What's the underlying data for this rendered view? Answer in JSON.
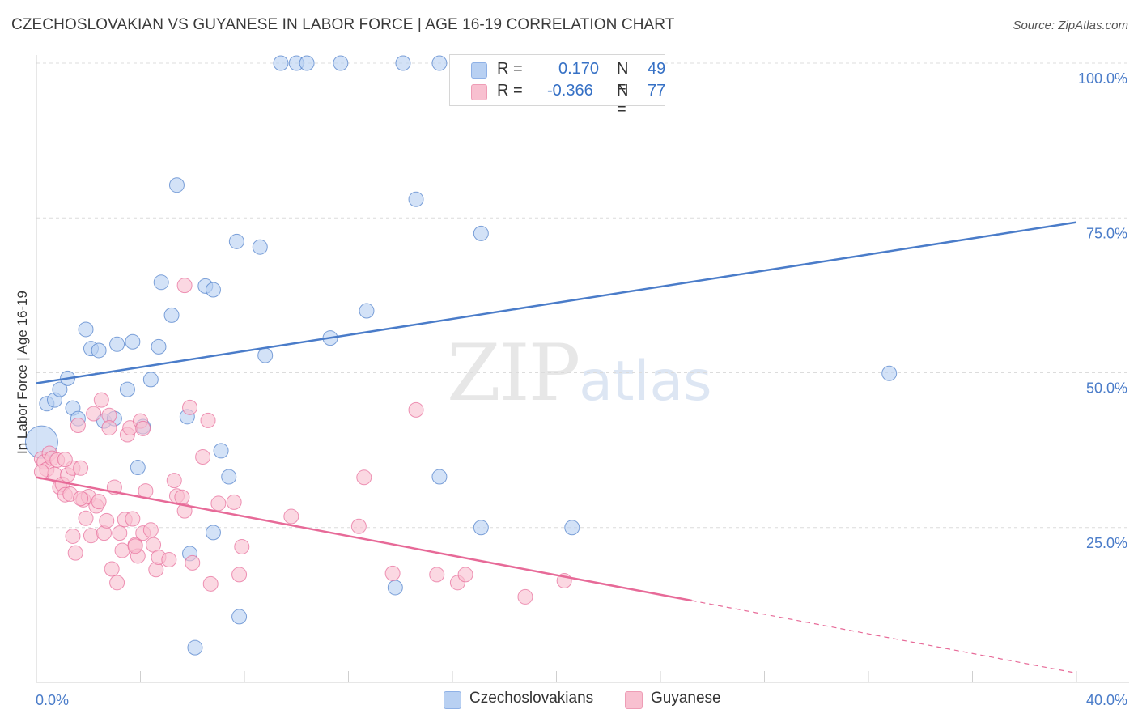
{
  "header": {
    "title": "CZECHOSLOVAKIAN VS GUYANESE IN LABOR FORCE | AGE 16-19 CORRELATION CHART",
    "source": "Source: ZipAtlas.com"
  },
  "watermark": {
    "zip": "ZIP",
    "atlas": "atlas"
  },
  "legend": {
    "rows": [
      {
        "r_label": "R =",
        "r_value": "0.170",
        "n_label": "N =",
        "n_value": "49",
        "color": "#b8d0f2"
      },
      {
        "r_label": "R =",
        "r_value": "-0.366",
        "n_label": "N =",
        "n_value": "77",
        "color": "#f8c0d0"
      }
    ]
  },
  "bottom_legend": {
    "items": [
      {
        "label": "Czechoslovakians",
        "color": "#b8d0f2"
      },
      {
        "label": "Guyanese",
        "color": "#f8c0d0"
      }
    ]
  },
  "chart_data": {
    "type": "scatter",
    "title": "CZECHOSLOVAKIAN VS GUYANESE IN LABOR FORCE | AGE 16-19 CORRELATION CHART",
    "xlabel": "",
    "ylabel": "In Labor Force | Age 16-19",
    "xlim": [
      0,
      40
    ],
    "ylim": [
      0,
      100
    ],
    "x_tick_labels": [
      "0.0%",
      "40.0%"
    ],
    "y_ticks": [
      25,
      50,
      75,
      100
    ],
    "y_tick_labels": [
      "25.0%",
      "50.0%",
      "75.0%",
      "100.0%"
    ],
    "grid": true,
    "legend_position": "top-center",
    "series": [
      {
        "name": "Czechoslovakians",
        "color": "#4a7cc9",
        "fill": "#b8d0f2",
        "trend": {
          "x": [
            0,
            40
          ],
          "y": [
            48.3,
            74.3
          ]
        },
        "points": [
          [
            0.2,
            38.8,
            "big"
          ],
          [
            0.4,
            45.0
          ],
          [
            0.7,
            45.6
          ],
          [
            0.9,
            47.3
          ],
          [
            1.2,
            49.1
          ],
          [
            1.4,
            44.3
          ],
          [
            1.6,
            42.6
          ],
          [
            1.9,
            57.0
          ],
          [
            2.1,
            53.9
          ],
          [
            2.4,
            53.6
          ],
          [
            2.6,
            42.2
          ],
          [
            3.0,
            42.6
          ],
          [
            3.1,
            54.6
          ],
          [
            3.5,
            47.3
          ],
          [
            3.7,
            55.0
          ],
          [
            3.9,
            34.7
          ],
          [
            4.1,
            41.3
          ],
          [
            4.4,
            48.9
          ],
          [
            4.7,
            54.2
          ],
          [
            4.8,
            64.6
          ],
          [
            5.2,
            59.3
          ],
          [
            5.4,
            80.3
          ],
          [
            5.8,
            42.9
          ],
          [
            5.9,
            20.8
          ],
          [
            6.1,
            5.6
          ],
          [
            6.5,
            64.0
          ],
          [
            6.8,
            63.4
          ],
          [
            6.8,
            24.2
          ],
          [
            7.1,
            37.4
          ],
          [
            7.4,
            33.2
          ],
          [
            7.7,
            71.2
          ],
          [
            7.8,
            10.6
          ],
          [
            8.6,
            70.3
          ],
          [
            8.8,
            52.8
          ],
          [
            9.4,
            100.0
          ],
          [
            10.0,
            100.0
          ],
          [
            10.4,
            100.0
          ],
          [
            11.3,
            55.6
          ],
          [
            11.7,
            100.0
          ],
          [
            12.7,
            60.0
          ],
          [
            13.8,
            15.3
          ],
          [
            14.1,
            100.0
          ],
          [
            14.6,
            78.0
          ],
          [
            15.5,
            33.2
          ],
          [
            15.5,
            100.0
          ],
          [
            17.1,
            25.0
          ],
          [
            17.1,
            72.5
          ],
          [
            20.6,
            25.0
          ],
          [
            32.8,
            49.9
          ]
        ]
      },
      {
        "name": "Guyanese",
        "color": "#e76a98",
        "fill": "#f8c0d0",
        "trend": {
          "x": [
            0,
            25.2
          ],
          "y": [
            33.1,
            13.2
          ]
        },
        "trend_ext": {
          "x": [
            25.2,
            40
          ],
          "y": [
            13.2,
            1.5
          ]
        },
        "points": [
          [
            0.2,
            36.1
          ],
          [
            0.3,
            35.6
          ],
          [
            0.4,
            34.4
          ],
          [
            0.5,
            37.0
          ],
          [
            0.6,
            36.2
          ],
          [
            0.7,
            33.6
          ],
          [
            0.8,
            35.9
          ],
          [
            0.9,
            31.5
          ],
          [
            1.0,
            32.0
          ],
          [
            1.1,
            30.3
          ],
          [
            1.2,
            33.5
          ],
          [
            1.3,
            30.4
          ],
          [
            1.4,
            34.6
          ],
          [
            1.4,
            23.6
          ],
          [
            1.5,
            20.9
          ],
          [
            1.6,
            41.5
          ],
          [
            1.7,
            34.6
          ],
          [
            1.8,
            29.5
          ],
          [
            1.9,
            26.5
          ],
          [
            2.0,
            30.0
          ],
          [
            2.1,
            23.7
          ],
          [
            2.2,
            43.4
          ],
          [
            2.3,
            28.5
          ],
          [
            2.4,
            29.2
          ],
          [
            2.5,
            45.6
          ],
          [
            2.6,
            24.1
          ],
          [
            2.7,
            26.1
          ],
          [
            2.8,
            43.1
          ],
          [
            2.9,
            18.3
          ],
          [
            3.0,
            31.5
          ],
          [
            3.1,
            16.1
          ],
          [
            3.2,
            24.1
          ],
          [
            3.3,
            21.3
          ],
          [
            3.4,
            26.3
          ],
          [
            3.5,
            40.0
          ],
          [
            3.6,
            41.1
          ],
          [
            3.7,
            26.4
          ],
          [
            3.8,
            22.2
          ],
          [
            3.9,
            20.4
          ],
          [
            4.0,
            42.2
          ],
          [
            4.1,
            24.1
          ],
          [
            4.2,
            30.9
          ],
          [
            4.4,
            24.6
          ],
          [
            4.5,
            22.2
          ],
          [
            4.6,
            18.2
          ],
          [
            4.7,
            20.2
          ],
          [
            5.1,
            19.8
          ],
          [
            5.3,
            32.6
          ],
          [
            5.4,
            30.1
          ],
          [
            5.6,
            29.9
          ],
          [
            5.7,
            27.7
          ],
          [
            5.9,
            44.4
          ],
          [
            6.0,
            19.3
          ],
          [
            6.4,
            36.4
          ],
          [
            6.6,
            42.3
          ],
          [
            6.7,
            15.9
          ],
          [
            7.0,
            28.9
          ],
          [
            7.6,
            29.1
          ],
          [
            7.8,
            17.4
          ],
          [
            7.9,
            21.9
          ],
          [
            9.8,
            26.8
          ],
          [
            12.4,
            25.2
          ],
          [
            12.6,
            33.1
          ],
          [
            13.7,
            17.6
          ],
          [
            14.6,
            44.0
          ],
          [
            15.4,
            17.4
          ],
          [
            16.2,
            16.1
          ],
          [
            16.5,
            17.4
          ],
          [
            18.8,
            13.8
          ],
          [
            20.3,
            16.4
          ],
          [
            5.7,
            64.1
          ],
          [
            1.1,
            36.0
          ],
          [
            0.2,
            34.0
          ],
          [
            2.8,
            41.1
          ],
          [
            4.1,
            41.0
          ],
          [
            3.8,
            22.0
          ],
          [
            1.7,
            29.7
          ]
        ]
      }
    ]
  }
}
